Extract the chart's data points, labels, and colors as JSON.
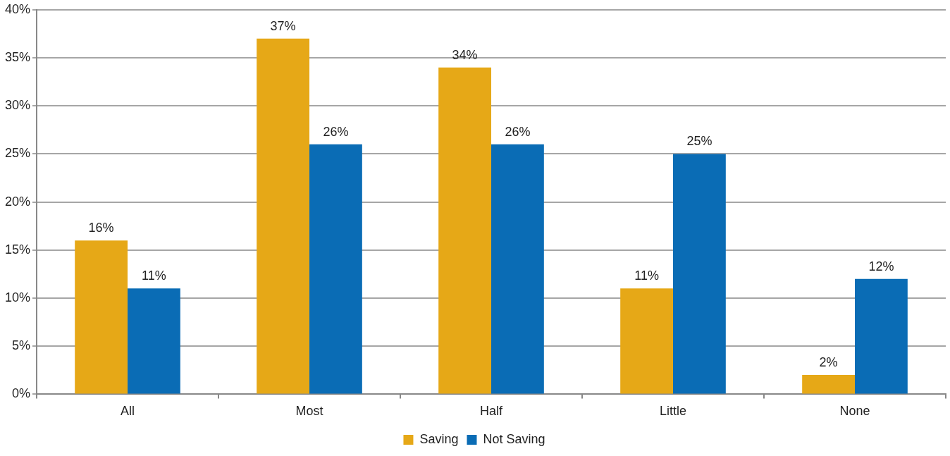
{
  "chart_data": {
    "type": "bar",
    "categories": [
      "All",
      "Most",
      "Half",
      "Little",
      "None"
    ],
    "series": [
      {
        "name": "Saving",
        "color": "#e6a817",
        "values": [
          16,
          37,
          34,
          11,
          2
        ],
        "value_labels": [
          "16%",
          "37%",
          "34%",
          "11%",
          "2%"
        ]
      },
      {
        "name": "Not Saving",
        "color": "#0a6cb5",
        "values": [
          11,
          26,
          26,
          25,
          12
        ],
        "value_labels": [
          "11%",
          "26%",
          "26%",
          "25%",
          "12%"
        ]
      }
    ],
    "ylim": [
      0,
      40
    ],
    "yticks": [
      {
        "value": 0,
        "label": "0%"
      },
      {
        "value": 5,
        "label": "5%"
      },
      {
        "value": 10,
        "label": "10%"
      },
      {
        "value": 15,
        "label": "15%"
      },
      {
        "value": 20,
        "label": "20%"
      },
      {
        "value": 25,
        "label": "25%"
      },
      {
        "value": 30,
        "label": "30%"
      },
      {
        "value": 35,
        "label": "35%"
      },
      {
        "value": 40,
        "label": "40%"
      }
    ],
    "grid": "y",
    "legend": "bottom"
  }
}
